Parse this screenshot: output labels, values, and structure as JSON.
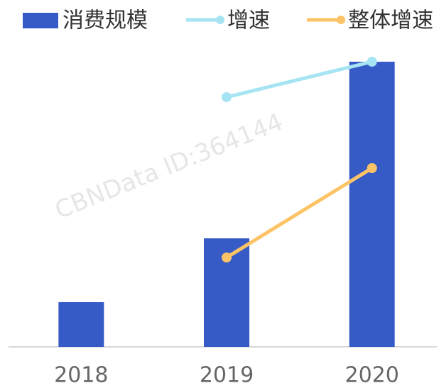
{
  "chart_data": {
    "type": "bar",
    "categories": [
      "2018",
      "2019",
      "2020"
    ],
    "watermark": "CBNData ID:364144",
    "series": [
      {
        "name": "消费规模",
        "color": "#365bc6",
        "type": "bar",
        "values": [
          63,
          153,
          402
        ]
      },
      {
        "name": "增速",
        "color": "#a6e4f3",
        "type": "line",
        "values": [
          null,
          352,
          402
        ]
      },
      {
        "name": "整体增速",
        "color": "#fcc466",
        "type": "line",
        "values": [
          null,
          126,
          252
        ]
      }
    ],
    "ylim": [
      0,
      420
    ]
  }
}
